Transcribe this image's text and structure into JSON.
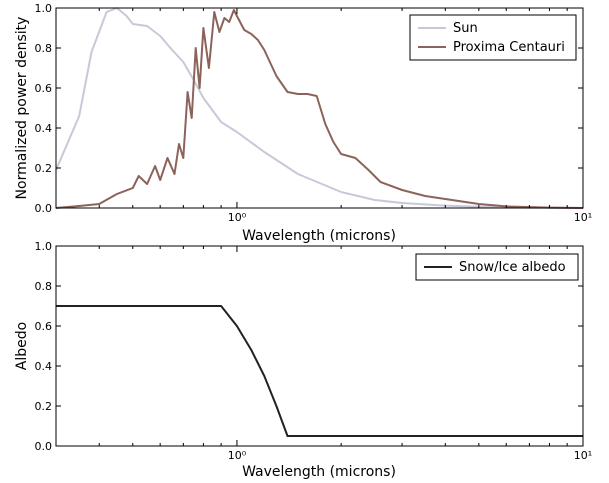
{
  "chart_data": [
    {
      "type": "line",
      "xscale": "log",
      "xlim": [
        0.3,
        10
      ],
      "ylim": [
        0.0,
        1.0
      ],
      "xlabel": "Wavelength (microns)",
      "ylabel": "Normalized power density",
      "xticks": [
        {
          "value": 1,
          "label": "10⁰"
        },
        {
          "value": 10,
          "label": "10¹"
        }
      ],
      "yticks": [
        "0.0",
        "0.2",
        "0.4",
        "0.6",
        "0.8",
        "1.0"
      ],
      "legend_position": "upper-right",
      "series": [
        {
          "name": "Sun",
          "color": "#c8c8da",
          "x": [
            0.3,
            0.35,
            0.38,
            0.42,
            0.45,
            0.48,
            0.5,
            0.55,
            0.6,
            0.65,
            0.7,
            0.75,
            0.8,
            0.9,
            1.0,
            1.2,
            1.5,
            2.0,
            2.5,
            3.0,
            4.0,
            5.0,
            7.0,
            10.0
          ],
          "y": [
            0.19,
            0.46,
            0.78,
            0.98,
            1.0,
            0.96,
            0.92,
            0.91,
            0.86,
            0.79,
            0.73,
            0.64,
            0.55,
            0.43,
            0.38,
            0.28,
            0.17,
            0.08,
            0.04,
            0.025,
            0.012,
            0.006,
            0.002,
            0.0
          ]
        },
        {
          "name": "Proxima Centauri",
          "color": "#8c635a",
          "x": [
            0.3,
            0.35,
            0.4,
            0.45,
            0.5,
            0.52,
            0.55,
            0.58,
            0.6,
            0.63,
            0.66,
            0.68,
            0.7,
            0.72,
            0.74,
            0.76,
            0.78,
            0.8,
            0.83,
            0.86,
            0.89,
            0.92,
            0.95,
            0.98,
            1.0,
            1.05,
            1.1,
            1.15,
            1.2,
            1.3,
            1.4,
            1.5,
            1.6,
            1.7,
            1.8,
            1.9,
            2.0,
            2.2,
            2.4,
            2.6,
            3.0,
            3.5,
            4.0,
            5.0,
            6.0,
            8.0,
            10.0
          ],
          "y": [
            0.0,
            0.01,
            0.02,
            0.07,
            0.1,
            0.16,
            0.12,
            0.21,
            0.14,
            0.25,
            0.17,
            0.32,
            0.25,
            0.58,
            0.45,
            0.8,
            0.6,
            0.9,
            0.7,
            0.98,
            0.88,
            0.95,
            0.93,
            0.99,
            0.96,
            0.89,
            0.87,
            0.84,
            0.79,
            0.66,
            0.58,
            0.57,
            0.57,
            0.56,
            0.42,
            0.33,
            0.27,
            0.25,
            0.19,
            0.13,
            0.09,
            0.06,
            0.045,
            0.02,
            0.008,
            0.002,
            0.0
          ]
        }
      ]
    },
    {
      "type": "line",
      "xscale": "log",
      "xlim": [
        0.3,
        10
      ],
      "ylim": [
        0.0,
        1.0
      ],
      "xlabel": "Wavelength (microns)",
      "ylabel": "Albedo",
      "xticks": [
        {
          "value": 1,
          "label": "10⁰"
        },
        {
          "value": 10,
          "label": "10¹"
        }
      ],
      "yticks": [
        "0.0",
        "0.2",
        "0.4",
        "0.6",
        "0.8",
        "1.0"
      ],
      "legend_position": "upper-right",
      "series": [
        {
          "name": "Snow/Ice albedo",
          "color": "#222222",
          "x": [
            0.3,
            0.9,
            1.0,
            1.1,
            1.2,
            1.3,
            1.4,
            2.0,
            5.0,
            10.0
          ],
          "y": [
            0.7,
            0.7,
            0.6,
            0.48,
            0.35,
            0.2,
            0.05,
            0.05,
            0.05,
            0.05
          ]
        }
      ]
    }
  ]
}
